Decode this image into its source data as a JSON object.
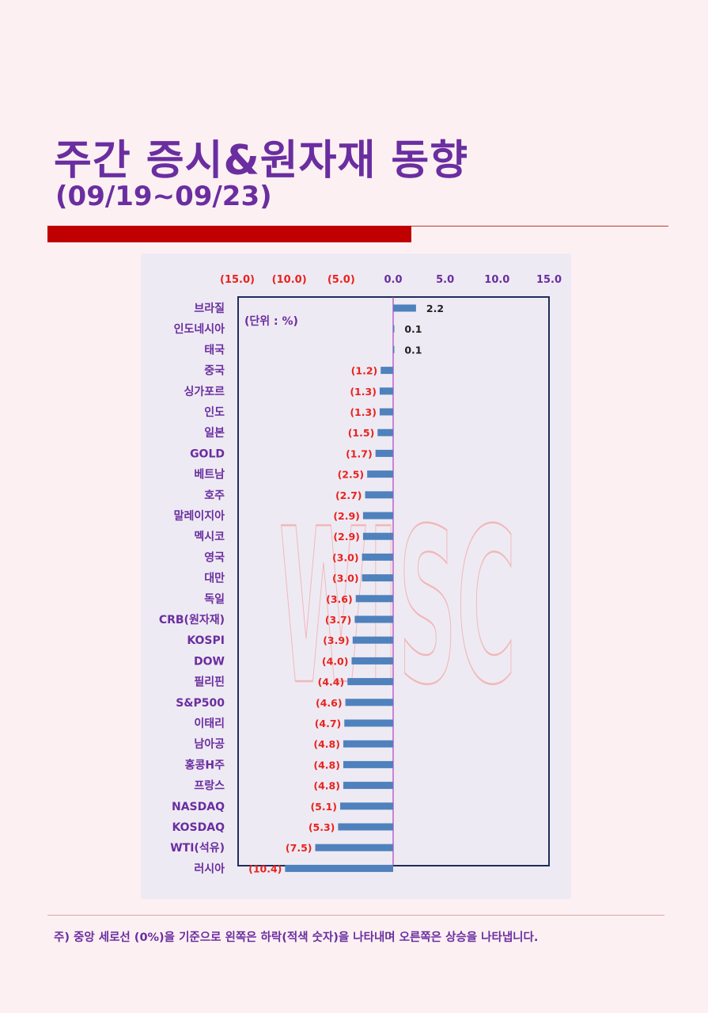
{
  "header": {
    "title": "주간 증시&원자재 동향",
    "subtitle": "(09/19~09/23)"
  },
  "footnote": "주) 중앙 세로선 (0%)을 기준으로 왼쪽은 하락(적색 숫자)을 나타내며 오른쪽은 상승을 나타냅니다.",
  "watermark": "WISC",
  "colors": {
    "bar": "#4f81bd",
    "negative_label": "#e8231e",
    "positive_label": "#222222",
    "category_label": "#6a2ea0",
    "zero_line": "#b040c0"
  },
  "chart_data": {
    "type": "bar",
    "orientation": "horizontal",
    "unit_note": "(단위 : %)",
    "xlim": [
      -15,
      15
    ],
    "x_ticks": [
      {
        "value": -15,
        "label": "(15.0)"
      },
      {
        "value": -10,
        "label": "(10.0)"
      },
      {
        "value": -5,
        "label": "(5.0)"
      },
      {
        "value": 0,
        "label": "0.0"
      },
      {
        "value": 5,
        "label": "5.0"
      },
      {
        "value": 10,
        "label": "10.0"
      },
      {
        "value": 15,
        "label": "15.0"
      }
    ],
    "categories": [
      "브라질",
      "인도네시아",
      "태국",
      "중국",
      "싱가포르",
      "인도",
      "일본",
      "GOLD",
      "베트남",
      "호주",
      "말레이지아",
      "멕시코",
      "영국",
      "대만",
      "독일",
      "CRB(원자재)",
      "KOSPI",
      "DOW",
      "필리핀",
      "S&P500",
      "이태리",
      "남아공",
      "홍콩H주",
      "프랑스",
      "NASDAQ",
      "KOSDAQ",
      "WTI(석유)",
      "러시아"
    ],
    "values": [
      2.2,
      0.1,
      0.1,
      -1.2,
      -1.3,
      -1.3,
      -1.5,
      -1.7,
      -2.5,
      -2.7,
      -2.9,
      -2.9,
      -3.0,
      -3.0,
      -3.6,
      -3.7,
      -3.9,
      -4.0,
      -4.4,
      -4.6,
      -4.7,
      -4.8,
      -4.8,
      -4.8,
      -5.1,
      -5.3,
      -7.5,
      -10.4
    ],
    "data_labels": [
      "2.2",
      "0.1",
      "0.1",
      "(1.2)",
      "(1.3)",
      "(1.3)",
      "(1.5)",
      "(1.7)",
      "(2.5)",
      "(2.7)",
      "(2.9)",
      "(2.9)",
      "(3.0)",
      "(3.0)",
      "(3.6)",
      "(3.7)",
      "(3.9)",
      "(4.0)",
      "(4.4)",
      "(4.6)",
      "(4.7)",
      "(4.8)",
      "(4.8)",
      "(4.8)",
      "(5.1)",
      "(5.3)",
      "(7.5)",
      "(10.4)"
    ],
    "grid": false
  }
}
